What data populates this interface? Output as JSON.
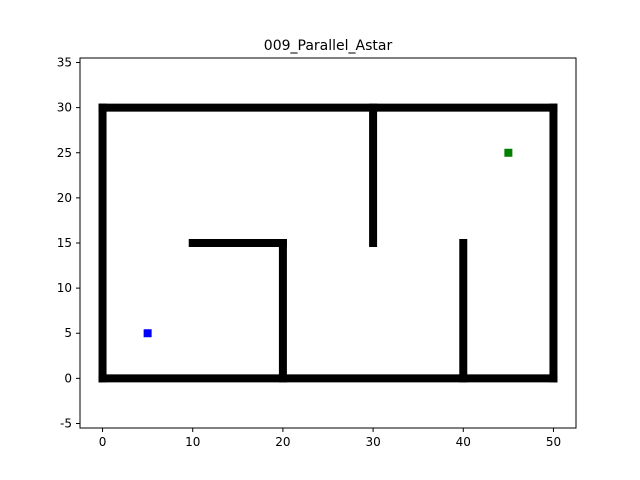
{
  "chart_data": {
    "type": "scatter",
    "title": "009_Parallel_Astar",
    "xlabel": "",
    "ylabel": "",
    "xlim": [
      -2.5,
      52.5
    ],
    "ylim": [
      -5.5,
      35.5
    ],
    "xticks": [
      0,
      10,
      20,
      30,
      40,
      50
    ],
    "yticks": [
      -5,
      0,
      5,
      10,
      15,
      20,
      25,
      30,
      35
    ],
    "grid": false,
    "series": [
      {
        "name": "walls",
        "color": "#000000",
        "marker": "square",
        "segments": [
          {
            "from": [
              0,
              30
            ],
            "to": [
              50,
              30
            ]
          },
          {
            "from": [
              0,
              0
            ],
            "to": [
              50,
              0
            ]
          },
          {
            "from": [
              0,
              0
            ],
            "to": [
              0,
              30
            ]
          },
          {
            "from": [
              50,
              0
            ],
            "to": [
              50,
              30
            ]
          },
          {
            "from": [
              30,
              15
            ],
            "to": [
              30,
              30
            ]
          },
          {
            "from": [
              10,
              15
            ],
            "to": [
              20,
              15
            ]
          },
          {
            "from": [
              20,
              0
            ],
            "to": [
              20,
              15
            ]
          },
          {
            "from": [
              40,
              0
            ],
            "to": [
              40,
              15
            ]
          }
        ]
      },
      {
        "name": "start",
        "color": "#0000ff",
        "marker": "square",
        "points": [
          [
            5,
            5
          ]
        ]
      },
      {
        "name": "goal",
        "color": "#008000",
        "marker": "square",
        "points": [
          [
            45,
            25
          ]
        ]
      }
    ]
  }
}
